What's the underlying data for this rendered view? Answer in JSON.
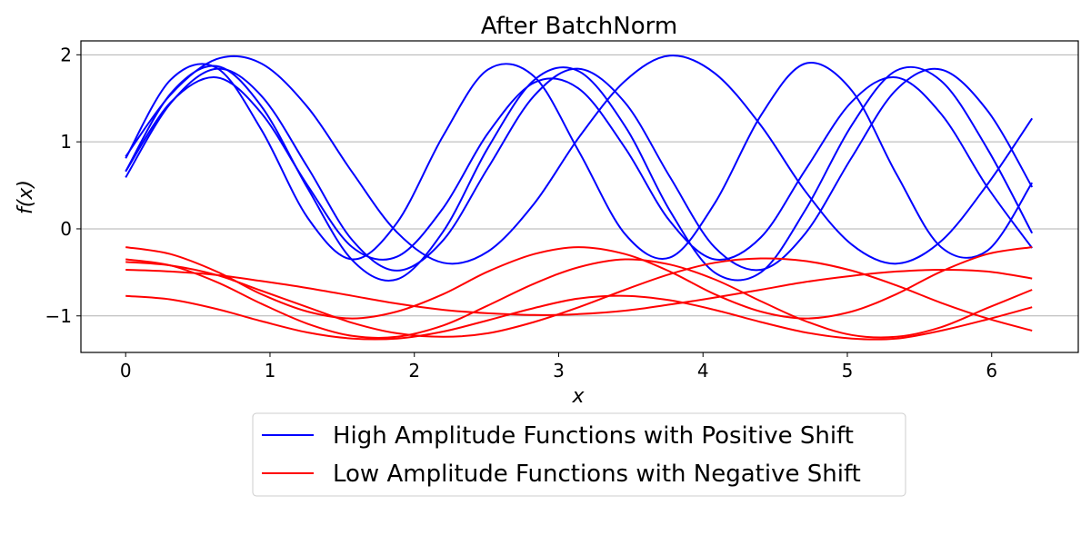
{
  "chart_data": {
    "type": "line",
    "title": "After BatchNorm",
    "xlabel": "x",
    "ylabel": "f(x)",
    "xlim": [
      -0.31,
      6.6
    ],
    "ylim": [
      -1.42,
      2.16
    ],
    "xticks": [
      0,
      1,
      2,
      3,
      4,
      5,
      6
    ],
    "xtick_labels": [
      "0",
      "1",
      "2",
      "3",
      "4",
      "5",
      "6"
    ],
    "yticks": [
      2,
      1,
      0,
      -1
    ],
    "ytick_labels": [
      "2",
      "1",
      "0",
      "−1"
    ],
    "grid": "y-only",
    "legend_placement": "below",
    "legend": [
      {
        "label": "High Amplitude Functions with Positive Shift",
        "color": "#0000ff"
      },
      {
        "label": "Low Amplitude Functions with Negative Shift",
        "color": "#ff0000"
      }
    ],
    "x": [
      0,
      0.31,
      0.63,
      0.94,
      1.26,
      1.57,
      1.88,
      2.2,
      2.51,
      2.83,
      3.14,
      3.46,
      3.77,
      4.08,
      4.4,
      4.71,
      5.03,
      5.34,
      5.65,
      5.97,
      6.28
    ],
    "series": [
      {
        "group": 0,
        "color": "#0000ff",
        "values": [
          0.81,
          1.71,
          1.85,
          1.14,
          0.13,
          -0.35,
          0.07,
          1.07,
          1.83,
          1.75,
          0.89,
          -0.06,
          -0.33,
          0.29,
          1.3,
          1.9,
          1.59,
          0.63,
          -0.21,
          -0.25,
          0.53
        ]
      },
      {
        "group": 0,
        "color": "#0000ff",
        "values": [
          0.83,
          1.54,
          1.95,
          1.9,
          1.4,
          0.65,
          -0.04,
          -0.39,
          -0.26,
          0.29,
          1.05,
          1.7,
          1.99,
          1.79,
          1.19,
          0.43,
          -0.18,
          -0.4,
          -0.14,
          0.51,
          1.27
        ]
      },
      {
        "group": 0,
        "color": "#0000ff",
        "values": [
          0.66,
          1.55,
          1.87,
          1.41,
          0.47,
          -0.36,
          -0.58,
          -0.03,
          0.93,
          1.71,
          1.81,
          1.18,
          0.21,
          -0.5,
          -0.5,
          0.22,
          1.19,
          1.82,
          1.7,
          0.92,
          -0.05
        ]
      },
      {
        "group": 0,
        "color": "#0000ff",
        "values": [
          0.59,
          1.44,
          1.84,
          1.53,
          0.71,
          -0.13,
          -0.48,
          -0.13,
          0.7,
          1.53,
          1.84,
          1.45,
          0.6,
          -0.21,
          -0.47,
          -0.05,
          0.82,
          1.6,
          1.83,
          1.36,
          0.48
        ]
      },
      {
        "group": 0,
        "color": "#0000ff",
        "values": [
          0.66,
          1.45,
          1.74,
          1.33,
          0.5,
          -0.21,
          -0.32,
          0.24,
          1.1,
          1.68,
          1.61,
          0.93,
          0.09,
          -0.35,
          -0.1,
          0.68,
          1.46,
          1.74,
          1.32,
          0.48,
          -0.22
        ]
      },
      {
        "group": 1,
        "color": "#ff0000",
        "values": [
          -0.21,
          -0.29,
          -0.49,
          -0.75,
          -0.95,
          -1.03,
          -0.95,
          -0.75,
          -0.49,
          -0.29,
          -0.21,
          -0.29,
          -0.49,
          -0.75,
          -0.95,
          -1.03,
          -0.95,
          -0.75,
          -0.49,
          -0.29,
          -0.21
        ]
      },
      {
        "group": 1,
        "color": "#ff0000",
        "values": [
          -0.35,
          -0.42,
          -0.61,
          -0.86,
          -1.09,
          -1.23,
          -1.24,
          -1.11,
          -0.88,
          -0.63,
          -0.44,
          -0.35,
          -0.41,
          -0.58,
          -0.83,
          -1.06,
          -1.22,
          -1.24,
          -1.13,
          -0.91,
          -0.7
        ]
      },
      {
        "group": 1,
        "color": "#ff0000",
        "values": [
          -0.38,
          -0.42,
          -0.53,
          -0.71,
          -0.9,
          -1.08,
          -1.2,
          -1.24,
          -1.2,
          -1.07,
          -0.9,
          -0.7,
          -0.52,
          -0.39,
          -0.34,
          -0.37,
          -0.48,
          -0.65,
          -0.85,
          -1.03,
          -1.17
        ]
      },
      {
        "group": 1,
        "color": "#ff0000",
        "values": [
          -0.47,
          -0.49,
          -0.53,
          -0.6,
          -0.68,
          -0.77,
          -0.86,
          -0.93,
          -0.97,
          -0.99,
          -0.98,
          -0.94,
          -0.87,
          -0.79,
          -0.7,
          -0.61,
          -0.54,
          -0.49,
          -0.47,
          -0.49,
          -0.57
        ]
      },
      {
        "group": 1,
        "color": "#ff0000",
        "values": [
          -0.77,
          -0.81,
          -0.92,
          -1.06,
          -1.19,
          -1.26,
          -1.26,
          -1.18,
          -1.05,
          -0.91,
          -0.8,
          -0.77,
          -0.82,
          -0.93,
          -1.07,
          -1.19,
          -1.26,
          -1.26,
          -1.17,
          -1.04,
          -0.9
        ]
      }
    ]
  }
}
